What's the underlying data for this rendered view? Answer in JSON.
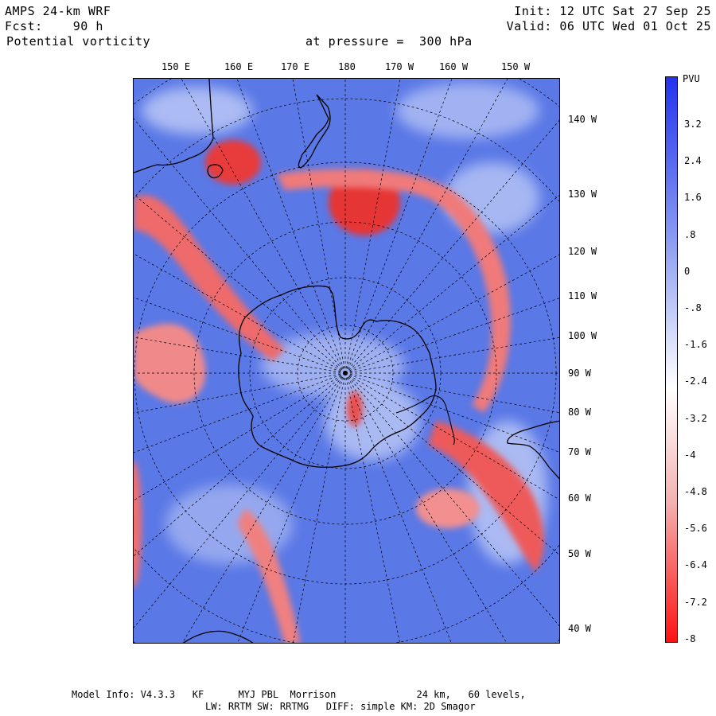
{
  "header": {
    "model": "AMPS 24-km WRF",
    "forecast": "Fcst:    90 h",
    "field": "Potential vorticity",
    "pressure": "at pressure =  300 hPa",
    "init": "Init: 12 UTC Sat 27 Sep 25",
    "valid": "Valid: 06 UTC Wed 01 Oct 25"
  },
  "map": {
    "lon_labels_top": [
      "150 E",
      "160 E",
      "170 E",
      "180",
      "170 W",
      "160 W",
      "150 W"
    ],
    "lat_labels_right": [
      "140 W",
      "130 W",
      "120 W",
      "110 W",
      "100 W",
      "90 W",
      "80 W",
      "70 W",
      "60 W",
      "50 W",
      "40 W"
    ]
  },
  "colorbar": {
    "unit": "PVU",
    "tick_labels": [
      "3.2",
      "2.4",
      "1.6",
      ".8",
      "0",
      "-.8",
      "-1.6",
      "-2.4",
      "-3.2",
      "-4",
      "-4.8",
      "-5.6",
      "-6.4",
      "-7.2",
      "-8"
    ],
    "range": [
      -8,
      4
    ],
    "colors": {
      "high": "#2233ee",
      "mid": "#ffffff",
      "low": "#ff1111"
    }
  },
  "footer": {
    "line1": "Model Info: V4.3.3   KF      MYJ PBL  Morrison              24 km,   60 levels,",
    "line2": "LW: RRTM SW: RRTMG   DIFF: simple KM: 2D Smagor"
  }
}
